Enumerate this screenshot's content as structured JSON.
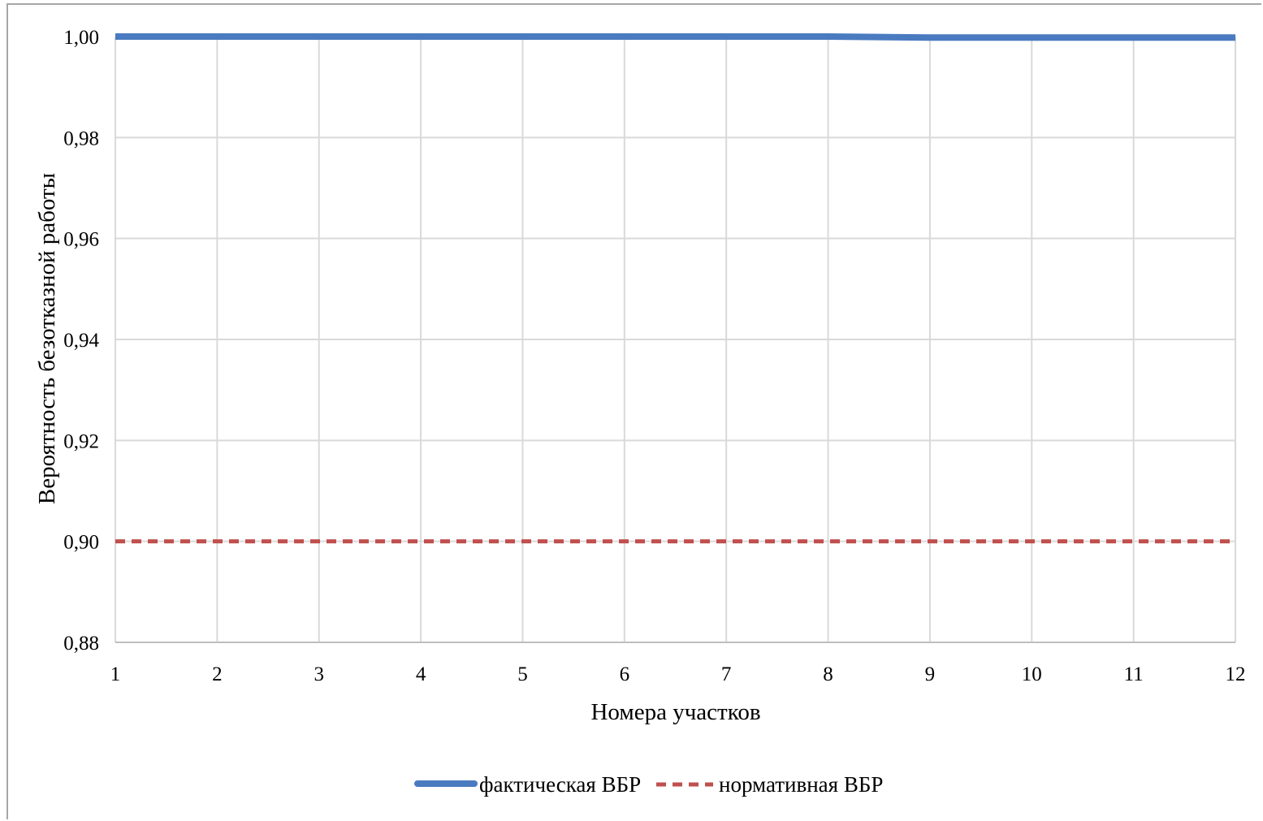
{
  "chart_data": {
    "type": "line",
    "xlabel": "Номера участков",
    "ylabel": "Вероятность безотказной работы",
    "x": [
      1,
      2,
      3,
      4,
      5,
      6,
      7,
      8,
      9,
      10,
      11,
      12
    ],
    "xticks": [
      "1",
      "2",
      "3",
      "4",
      "5",
      "6",
      "7",
      "8",
      "9",
      "10",
      "11",
      "12"
    ],
    "ylim": [
      0.88,
      1.0
    ],
    "yticks": [
      "0,88",
      "0,90",
      "0,92",
      "0,94",
      "0,96",
      "0,98",
      "1,00"
    ],
    "ytick_values": [
      0.88,
      0.9,
      0.92,
      0.94,
      0.96,
      0.98,
      1.0
    ],
    "grid": true,
    "legend_position": "bottom",
    "series": [
      {
        "name": "фактическая ВБР",
        "style": "solid",
        "color": "#4a7bc0",
        "values": [
          1.0,
          1.0,
          1.0,
          1.0,
          1.0,
          1.0,
          1.0,
          1.0,
          0.9998,
          0.9998,
          0.9998,
          0.9998
        ]
      },
      {
        "name": "нормативная ВБР",
        "style": "dashed",
        "color": "#c0504d",
        "values": [
          0.9,
          0.9,
          0.9,
          0.9,
          0.9,
          0.9,
          0.9,
          0.9,
          0.9,
          0.9,
          0.9,
          0.9
        ]
      }
    ]
  }
}
